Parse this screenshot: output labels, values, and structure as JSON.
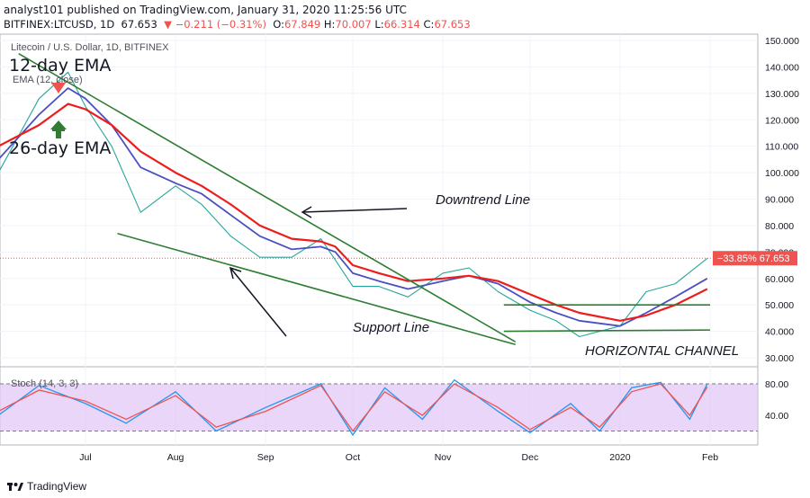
{
  "header": {
    "publisher": "analyst101 published on TradingView.com, January 31, 2020 11:25:56 UTC",
    "symbol": "BITFINEX:LTCUSD, 1D",
    "last": "67.653",
    "change": "▼ −0.211 (−0.31%)",
    "o_label": "O:",
    "o": "67.849",
    "h_label": "H:",
    "h": "70.007",
    "l_label": "L:",
    "l": "66.314",
    "c_label": "C:",
    "c": "67.653"
  },
  "legend": {
    "title": "Litecoin / U.S. Dollar, 1D, BITFINEX",
    "ema_line": "EMA (12, close)"
  },
  "annotations": {
    "ema12": "12-day EMA",
    "ema26": "26-day EMA",
    "downtrend": "Downtrend Line",
    "support": "Support Line",
    "channel": "HORIZONTAL CHANNEL",
    "price_tag": "−33.85%  67.653"
  },
  "stoch": {
    "label": "Stoch (14, 3, 3)",
    "ticks": [
      "80.00",
      "40.00"
    ]
  },
  "footer": {
    "brand": "TradingView"
  },
  "colors": {
    "up": "#26a69a",
    "down": "#ef5350",
    "ema12": "#4b4fbf",
    "ema26": "#ef1c1c",
    "trend": "#2e7d32",
    "stoch_fill": "#e1c8f5",
    "k": "#2196f3",
    "d": "#ef5350"
  },
  "chart_data": {
    "type": "line",
    "x_months": [
      "Jul",
      "Aug",
      "Sep",
      "Oct",
      "Nov",
      "Dec",
      "2020",
      "Feb"
    ],
    "y_ticks": [
      150,
      140,
      130,
      120,
      110,
      100,
      90,
      80,
      70,
      60,
      50,
      40,
      30
    ],
    "ylim": [
      27,
      152
    ],
    "last_price": 67.653,
    "series": [
      {
        "name": "",
        "x": [
          "2019-06-01",
          "2019-06-15",
          "2019-06-25",
          "2019-07-01",
          "2019-07-10",
          "2019-07-20",
          "2019-08-01",
          "2019-08-10",
          "2019-08-20",
          "2019-08-30",
          "2019-09-10",
          "2019-09-20",
          "2019-09-25",
          "2019-10-01",
          "2019-10-10",
          "2019-10-20",
          "2019-11-01",
          "2019-11-10",
          "2019-11-20",
          "2019-12-01",
          "2019-12-10",
          "2019-12-18",
          "2020-01-01",
          "2020-01-10",
          "2020-01-20",
          "2020-01-31"
        ],
        "values": [
          100,
          128,
          138,
          125,
          110,
          85,
          95,
          88,
          76,
          68,
          68,
          75,
          67,
          57,
          57,
          53,
          62,
          64,
          55,
          48,
          44,
          38,
          42,
          55,
          58,
          67.6
        ]
      },
      {
        "name": "",
        "x": [
          "2019-06-01",
          "2019-06-15",
          "2019-06-25",
          "2019-07-01",
          "2019-07-10",
          "2019-07-20",
          "2019-08-01",
          "2019-08-10",
          "2019-08-20",
          "2019-08-30",
          "2019-09-10",
          "2019-09-20",
          "2019-09-25",
          "2019-10-01",
          "2019-10-10",
          "2019-10-20",
          "2019-11-01",
          "2019-11-10",
          "2019-11-20",
          "2019-12-01",
          "2019-12-10",
          "2019-12-18",
          "2020-01-01",
          "2020-01-10",
          "2020-01-20",
          "2020-01-31"
        ],
        "values": [
          105,
          122,
          132,
          128,
          118,
          102,
          96,
          92,
          84,
          76,
          71,
          72,
          70,
          62,
          59,
          56,
          59,
          61,
          58,
          51,
          47,
          44,
          42,
          47,
          53,
          60
        ]
      },
      {
        "name": "",
        "x": [
          "2019-06-01",
          "2019-06-15",
          "2019-06-25",
          "2019-07-01",
          "2019-07-10",
          "2019-07-20",
          "2019-08-01",
          "2019-08-10",
          "2019-08-20",
          "2019-08-30",
          "2019-09-10",
          "2019-09-20",
          "2019-09-25",
          "2019-10-01",
          "2019-10-10",
          "2019-10-20",
          "2019-11-01",
          "2019-11-10",
          "2019-11-20",
          "2019-12-01",
          "2019-12-10",
          "2019-12-18",
          "2020-01-01",
          "2020-01-10",
          "2020-01-20",
          "2020-01-31"
        ],
        "values": [
          110,
          118,
          126,
          124,
          118,
          108,
          100,
          95,
          88,
          80,
          75,
          74,
          72,
          65,
          62,
          59,
          60,
          61,
          59,
          54,
          50,
          47,
          44,
          46,
          50,
          56
        ]
      }
    ],
    "trendlines": [
      {
        "name": "downtrend",
        "from": [
          "2019-06-08",
          145
        ],
        "to": [
          "2019-11-26",
          36
        ]
      },
      {
        "name": "support",
        "from": [
          "2019-07-12",
          77
        ],
        "to": [
          "2019-11-26",
          35
        ]
      },
      {
        "name": "channel-top",
        "from": [
          "2019-11-22",
          50
        ],
        "to": [
          "2020-02-01",
          50
        ]
      },
      {
        "name": "channel-bottom",
        "from": [
          "2019-11-22",
          40
        ],
        "to": [
          "2020-02-01",
          40.5
        ]
      }
    ],
    "stoch_data": {
      "x": [
        "2019-06-01",
        "2019-06-15",
        "2019-07-01",
        "2019-07-15",
        "2019-08-01",
        "2019-08-15",
        "2019-09-01",
        "2019-09-20",
        "2019-10-01",
        "2019-10-12",
        "2019-10-25",
        "2019-11-05",
        "2019-11-20",
        "2019-12-01",
        "2019-12-15",
        "2019-12-25",
        "2020-01-05",
        "2020-01-15",
        "2020-01-25",
        "2020-01-31"
      ],
      "k": [
        40,
        78,
        55,
        30,
        70,
        20,
        50,
        80,
        15,
        75,
        35,
        85,
        45,
        18,
        55,
        20,
        75,
        82,
        35,
        80
      ],
      "d": [
        45,
        72,
        58,
        35,
        65,
        25,
        45,
        78,
        20,
        70,
        40,
        80,
        50,
        22,
        50,
        25,
        70,
        80,
        40,
        76
      ],
      "levels": [
        80,
        20
      ]
    }
  }
}
